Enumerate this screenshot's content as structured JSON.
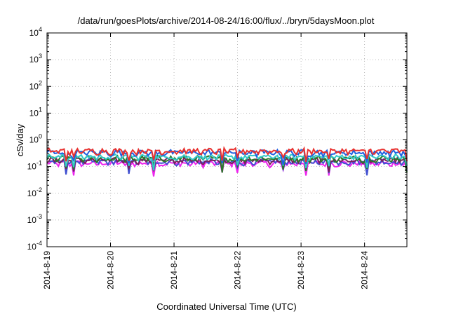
{
  "chart_data": {
    "type": "line",
    "title": "/data/run/goesPlots/archive/2014-08-24/16:00/flux/../bryn/5daysMoon.plot",
    "xlabel": "Coordinated Universal Time (UTC)",
    "ylabel": "cSv/day",
    "x_tick_labels": [
      "2014-8-19",
      "2014-8-20",
      "2014-8-21",
      "2014-8-22",
      "2014-8-23",
      "2014-8-24"
    ],
    "x_range": [
      "2014-08-19T00:00",
      "2014-08-24T16:00"
    ],
    "y_scale": "log",
    "ylim": [
      0.0001,
      10000
    ],
    "y_ticks": [
      {
        "base": "10",
        "exp": "4"
      },
      {
        "base": "10",
        "exp": "3"
      },
      {
        "base": "10",
        "exp": "2"
      },
      {
        "base": "10",
        "exp": "1"
      },
      {
        "base": "10",
        "exp": "0"
      },
      {
        "base": "10",
        "exp": "-1"
      },
      {
        "base": "10",
        "exp": "-2"
      },
      {
        "base": "10",
        "exp": "-3"
      },
      {
        "base": "10",
        "exp": "-4"
      }
    ],
    "grid": true,
    "series": [
      {
        "color": "#e8312f",
        "level": 0.38
      },
      {
        "color": "#2060e0",
        "level": 0.33
      },
      {
        "color": "#33c9c9",
        "level": 0.23
      },
      {
        "color": "#2a7a2a",
        "level": 0.2
      },
      {
        "color": "#7a1f5c",
        "level": 0.17
      },
      {
        "color": "#4050d0",
        "level": 0.15
      },
      {
        "color": "#ee22ee",
        "level": 0.13
      }
    ]
  }
}
